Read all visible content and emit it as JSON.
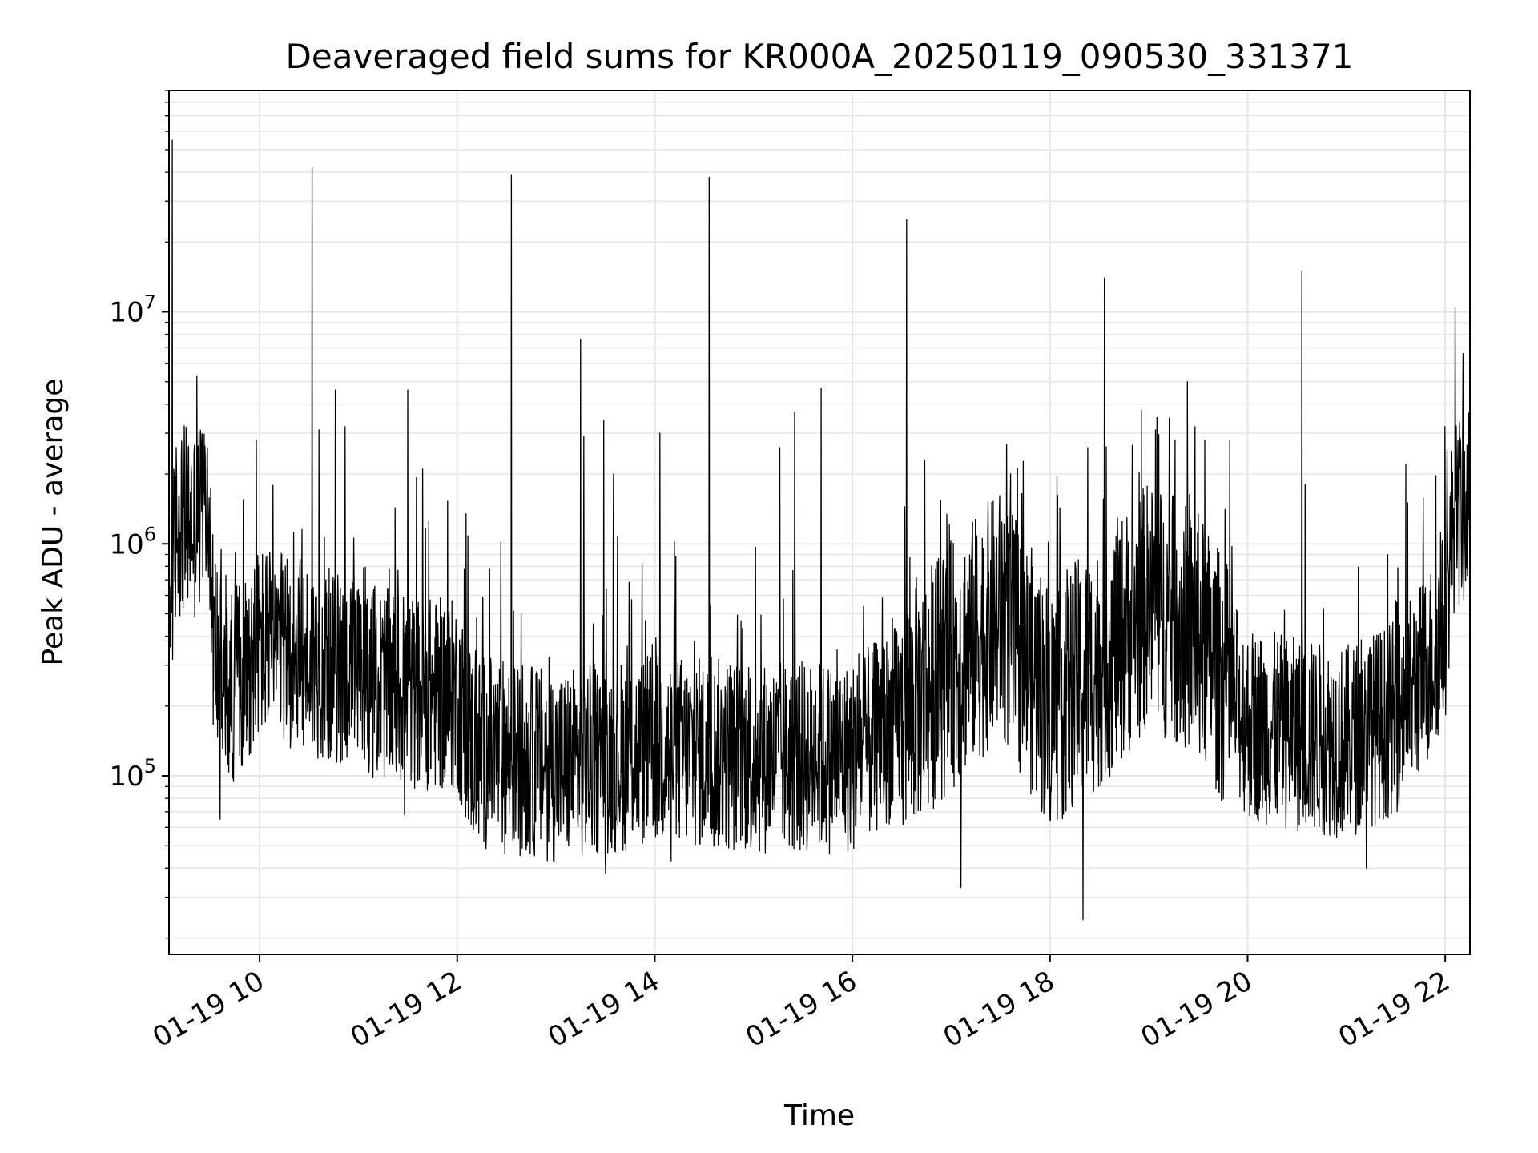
{
  "chart_data": {
    "type": "line",
    "title": "Deaveraged field sums for KR000A_20250119_090530_331371",
    "xlabel": "Time",
    "ylabel": "Peak ADU - average",
    "y_scale": "log",
    "ylim": [
      17000,
      90000000
    ],
    "xlim": [
      "01-19 09:05",
      "01-19 22:15"
    ],
    "grid": true,
    "legend": "none",
    "line_color": "#000000",
    "x_ticks": [
      {
        "t": "01-19 10:00",
        "label": "01-19 10"
      },
      {
        "t": "01-19 12:00",
        "label": "01-19 12"
      },
      {
        "t": "01-19 14:00",
        "label": "01-19 14"
      },
      {
        "t": "01-19 16:00",
        "label": "01-19 16"
      },
      {
        "t": "01-19 18:00",
        "label": "01-19 18"
      },
      {
        "t": "01-19 20:00",
        "label": "01-19 20"
      },
      {
        "t": "01-19 22:00",
        "label": "01-19 22"
      }
    ],
    "y_ticks": [
      {
        "value": 100000,
        "base": "10",
        "exp": "5"
      },
      {
        "value": 1000000,
        "base": "10",
        "exp": "6"
      },
      {
        "value": 10000000,
        "base": "10",
        "exp": "7"
      }
    ],
    "baseline": [
      [
        "01-19 09:05",
        500000
      ],
      [
        "01-19 09:10",
        1300000
      ],
      [
        "01-19 09:20",
        1200000
      ],
      [
        "01-19 09:28",
        1500000
      ],
      [
        "01-19 09:32",
        400000
      ],
      [
        "01-19 09:40",
        220000
      ],
      [
        "01-19 10:00",
        380000
      ],
      [
        "01-19 10:30",
        320000
      ],
      [
        "01-19 11:00",
        270000
      ],
      [
        "01-19 11:30",
        230000
      ],
      [
        "01-19 12:00",
        220000
      ],
      [
        "01-19 12:10",
        130000
      ],
      [
        "01-19 13:00",
        110000
      ],
      [
        "01-19 14:00",
        130000
      ],
      [
        "01-19 15:00",
        120000
      ],
      [
        "01-19 16:00",
        120000
      ],
      [
        "01-19 16:30",
        180000
      ],
      [
        "01-19 17:00",
        300000
      ],
      [
        "01-19 17:30",
        500000
      ],
      [
        "01-19 18:00",
        200000
      ],
      [
        "01-19 18:30",
        300000
      ],
      [
        "01-19 19:00",
        550000
      ],
      [
        "01-19 19:30",
        400000
      ],
      [
        "01-19 20:00",
        170000
      ],
      [
        "01-19 20:30",
        150000
      ],
      [
        "01-19 21:00",
        140000
      ],
      [
        "01-19 21:30",
        180000
      ],
      [
        "01-19 21:50",
        300000
      ],
      [
        "01-19 22:00",
        450000
      ],
      [
        "01-19 22:05",
        1300000
      ],
      [
        "01-19 22:15",
        1500000
      ]
    ],
    "spikes": [
      [
        "01-19 09:07",
        55000000
      ],
      [
        "01-19 09:22",
        5300000
      ],
      [
        "01-19 09:58",
        2800000
      ],
      [
        "01-19 10:32",
        42000000
      ],
      [
        "01-19 10:36",
        3100000
      ],
      [
        "01-19 10:46",
        4600000
      ],
      [
        "01-19 10:52",
        3200000
      ],
      [
        "01-19 11:30",
        4600000
      ],
      [
        "01-19 11:39",
        2100000
      ],
      [
        "01-19 12:33",
        39000000
      ],
      [
        "01-19 13:15",
        7600000
      ],
      [
        "01-19 13:17",
        2900000
      ],
      [
        "01-19 13:29",
        3400000
      ],
      [
        "01-19 13:35",
        2000000
      ],
      [
        "01-19 14:33",
        38000000
      ],
      [
        "01-19 14:03",
        3000000
      ],
      [
        "01-19 15:16",
        2600000
      ],
      [
        "01-19 15:25",
        3700000
      ],
      [
        "01-19 15:41",
        4700000
      ],
      [
        "01-19 16:33",
        25000000
      ],
      [
        "01-19 16:44",
        2300000
      ],
      [
        "01-19 17:36",
        2000000
      ],
      [
        "01-19 18:23",
        2600000
      ],
      [
        "01-19 18:33",
        14000000
      ],
      [
        "01-19 19:04",
        3100000
      ],
      [
        "01-19 19:28",
        3200000
      ],
      [
        "01-19 19:34",
        2800000
      ],
      [
        "01-19 20:33",
        15000000
      ],
      [
        "01-19 20:35",
        1800000
      ],
      [
        "01-19 21:36",
        2200000
      ]
    ],
    "dips": [
      [
        "01-19 09:36",
        65000.0
      ],
      [
        "01-19 11:28",
        68000
      ],
      [
        "01-19 13:30",
        38000
      ],
      [
        "01-19 14:10",
        43000
      ],
      [
        "01-19 17:06",
        33000
      ],
      [
        "01-19 18:20",
        24000
      ],
      [
        "01-19 21:12",
        40000
      ]
    ]
  }
}
